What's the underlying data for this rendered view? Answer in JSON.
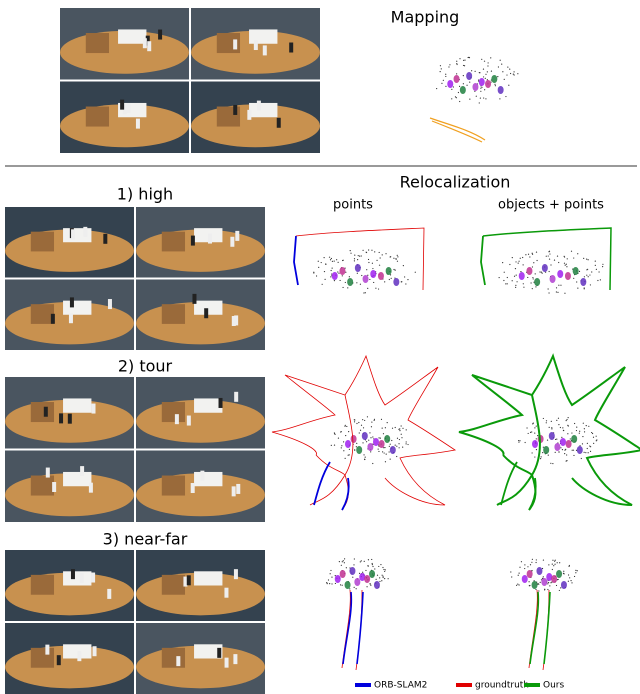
{
  "mapping": {
    "title": "Mapping"
  },
  "relocalization": {
    "title": "Relocalization",
    "columns": [
      "points",
      "objects + points"
    ],
    "rows": [
      "1) high",
      "2) tour",
      "3) near-far"
    ]
  },
  "legend": [
    {
      "name": "ORB-SLAM2",
      "color": "#0000dd"
    },
    {
      "name": "groundtruth",
      "color": "#e00000"
    },
    {
      "name": "Ours",
      "color": "#0a9a0a"
    }
  ]
}
